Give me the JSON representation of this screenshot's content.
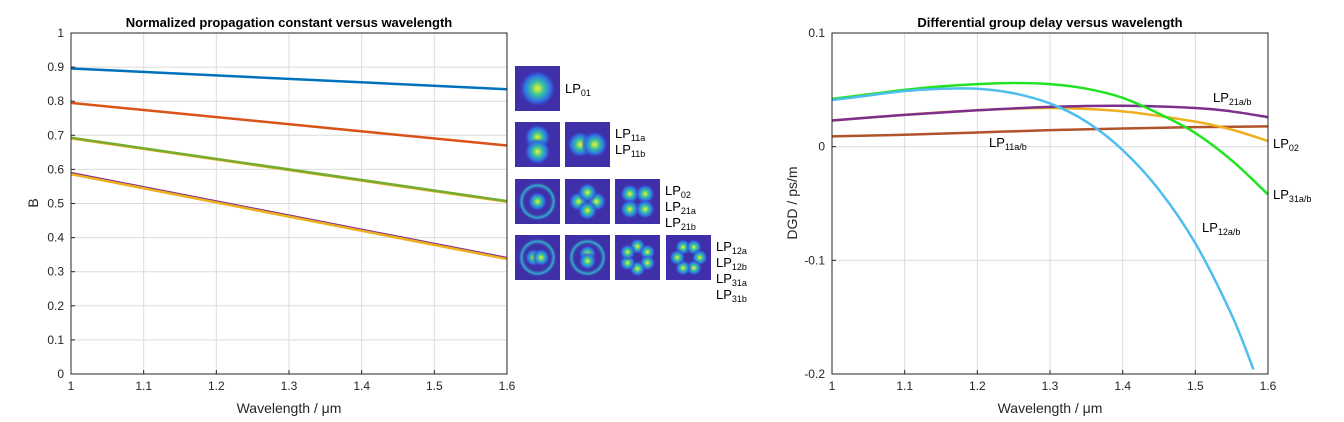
{
  "colors": {
    "blue": "#0072bd",
    "orange": "#d95319",
    "yellow": "#edb120",
    "purple": "#7e2f8e",
    "green": "#77ac30",
    "lightblue": "#4dbeee",
    "brightgreen": "#22e322",
    "rust": "#b2532b"
  },
  "chart_data": [
    {
      "type": "line",
      "title": "Normalized propagation constant versus wavelength",
      "xlabel": "Wavelength / μm",
      "ylabel": "B",
      "xlim": [
        1,
        1.6
      ],
      "ylim": [
        0,
        1
      ],
      "xticks": [
        "1",
        "1.1",
        "1.2",
        "1.3",
        "1.4",
        "1.5",
        "1.6"
      ],
      "yticks": [
        "0",
        "0.1",
        "0.2",
        "0.3",
        "0.4",
        "0.5",
        "0.6",
        "0.7",
        "0.8",
        "0.9",
        "1"
      ],
      "grid": true,
      "series": [
        {
          "color": "blue",
          "x": [
            1.0,
            1.6
          ],
          "y": [
            0.896,
            0.835
          ]
        },
        {
          "color": "orange",
          "x": [
            1.0,
            1.6
          ],
          "y": [
            0.795,
            0.67
          ]
        },
        {
          "color": "yellow",
          "x": [
            1.0,
            1.6
          ],
          "y": [
            0.691,
            0.505
          ]
        },
        {
          "color": "green",
          "x": [
            1.0,
            1.6
          ],
          "y": [
            0.693,
            0.507
          ]
        },
        {
          "color": "purple",
          "x": [
            1.0,
            1.6
          ],
          "y": [
            0.589,
            0.34
          ]
        },
        {
          "color": "yellow",
          "x": [
            1.0,
            1.6
          ],
          "y": [
            0.586,
            0.337
          ]
        }
      ]
    },
    {
      "type": "line",
      "title": "Differential group delay versus wavelength",
      "xlabel": "Wavelength / μm",
      "ylabel": "DGD / ps/m",
      "xlim": [
        1,
        1.6
      ],
      "ylim": [
        -0.2,
        0.1
      ],
      "xticks": [
        "1",
        "1.1",
        "1.2",
        "1.3",
        "1.4",
        "1.5",
        "1.6"
      ],
      "yticks": [
        "-0.2",
        "-0.1",
        "0",
        "0.1"
      ],
      "grid": true,
      "series": [
        {
          "name": "LP11a/b",
          "color": "rust",
          "x": [
            1.0,
            1.1,
            1.2,
            1.3,
            1.4,
            1.5,
            1.6
          ],
          "y": [
            0.009,
            0.0105,
            0.0125,
            0.0145,
            0.016,
            0.0172,
            0.0178
          ]
        },
        {
          "name": "LP02",
          "color": "yellow",
          "x": [
            1.0,
            1.1,
            1.2,
            1.3,
            1.4,
            1.5,
            1.55,
            1.6
          ],
          "y": [
            0.023,
            0.028,
            0.032,
            0.034,
            0.031,
            0.022,
            0.015,
            0.005
          ]
        },
        {
          "name": "LP21a/b",
          "color": "purple",
          "x": [
            1.0,
            1.1,
            1.2,
            1.3,
            1.4,
            1.5,
            1.55,
            1.6
          ],
          "y": [
            0.023,
            0.028,
            0.032,
            0.035,
            0.036,
            0.034,
            0.031,
            0.026
          ]
        },
        {
          "name": "LP31a/b",
          "color": "brightgreen",
          "x": [
            1.0,
            1.05,
            1.1,
            1.15,
            1.2,
            1.25,
            1.3,
            1.35,
            1.4,
            1.45,
            1.5,
            1.55,
            1.6
          ],
          "y": [
            0.042,
            0.046,
            0.05,
            0.053,
            0.055,
            0.056,
            0.055,
            0.051,
            0.043,
            0.029,
            0.012,
            -0.012,
            -0.042
          ]
        },
        {
          "name": "LP12a/b",
          "color": "lightblue",
          "x": [
            1.0,
            1.05,
            1.1,
            1.15,
            1.2,
            1.25,
            1.3,
            1.35,
            1.4,
            1.45,
            1.5,
            1.55,
            1.58
          ],
          "y": [
            0.041,
            0.045,
            0.049,
            0.051,
            0.051,
            0.047,
            0.038,
            0.022,
            -0.003,
            -0.038,
            -0.085,
            -0.148,
            -0.196
          ]
        }
      ]
    }
  ],
  "legend": {
    "rows": [
      {
        "icons": [
          "mode-lp01-icon"
        ],
        "labels": [
          {
            "base": "LP",
            "sub": "01"
          }
        ]
      },
      {
        "icons": [
          "mode-lp11a-icon",
          "mode-lp11b-icon"
        ],
        "labels": [
          {
            "base": "LP",
            "sub": "11a"
          },
          {
            "base": "LP",
            "sub": "11b"
          }
        ]
      },
      {
        "icons": [
          "mode-lp02-icon",
          "mode-lp21a-icon",
          "mode-lp21b-icon"
        ],
        "labels": [
          {
            "base": "LP",
            "sub": "02"
          },
          {
            "base": "LP",
            "sub": "21a"
          },
          {
            "base": "LP",
            "sub": "21b"
          }
        ]
      },
      {
        "icons": [
          "mode-lp12a-icon",
          "mode-lp12b-icon",
          "mode-lp31a-icon",
          "mode-lp31b-icon"
        ],
        "labels": [
          {
            "base": "LP",
            "sub": "12a"
          },
          {
            "base": "LP",
            "sub": "12b"
          },
          {
            "base": "LP",
            "sub": "31a"
          },
          {
            "base": "LP",
            "sub": "31b"
          }
        ]
      }
    ]
  },
  "annotations": [
    {
      "base": "LP",
      "sub": "21a/b"
    },
    {
      "base": "LP",
      "sub": "02"
    },
    {
      "base": "LP",
      "sub": "11a/b"
    },
    {
      "base": "LP",
      "sub": "31a/b"
    },
    {
      "base": "LP",
      "sub": "12a/b"
    }
  ]
}
